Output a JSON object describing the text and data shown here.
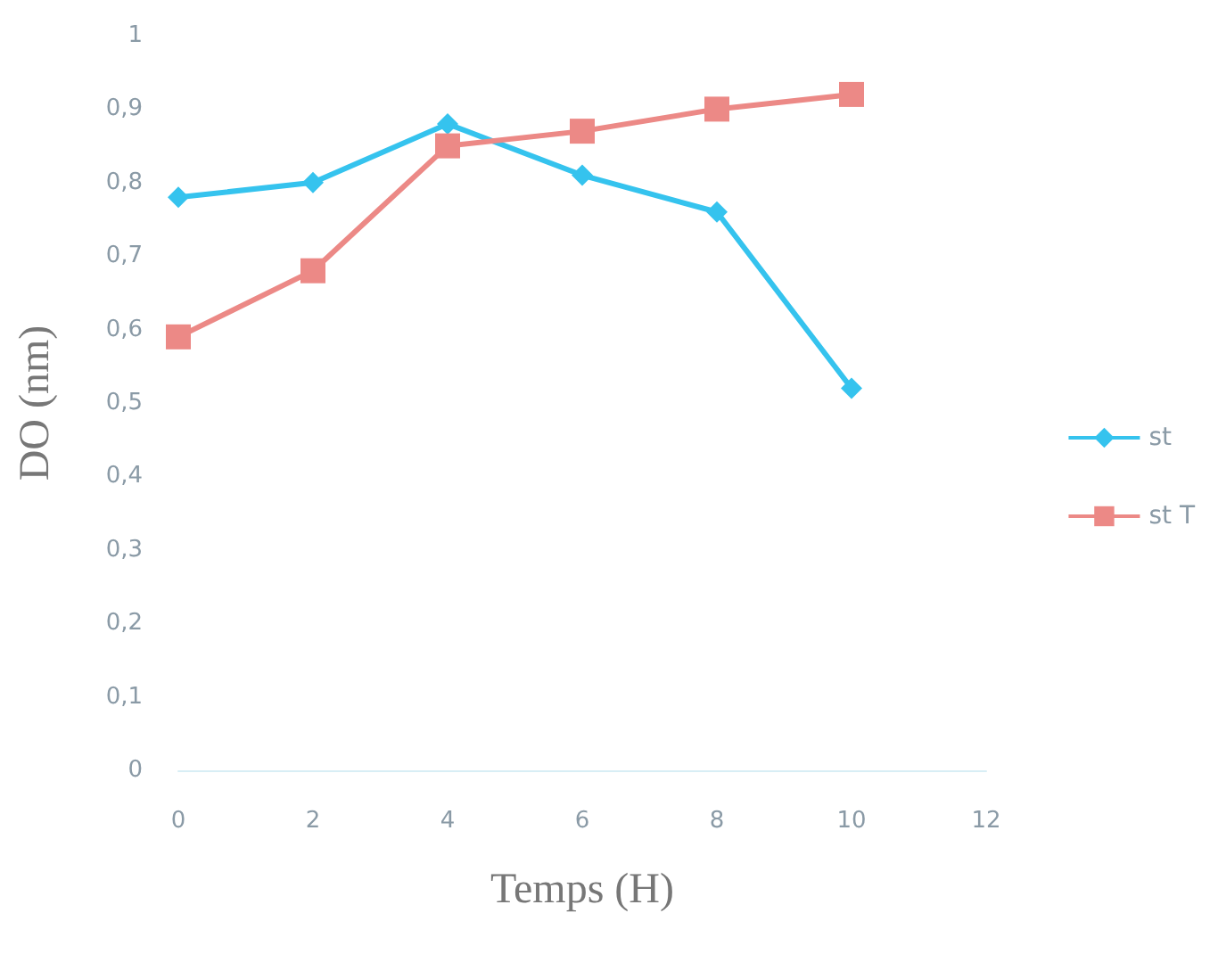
{
  "chart_data": {
    "type": "line",
    "xlabel": "Temps (H)",
    "ylabel": "DO (nm)",
    "x": [
      0,
      2,
      4,
      6,
      8,
      10
    ],
    "series": [
      {
        "name": "st",
        "color": "#35c3ee",
        "marker": "diamond",
        "values": [
          0.78,
          0.8,
          0.88,
          0.81,
          0.76,
          0.52
        ]
      },
      {
        "name": "st T",
        "color": "#ec8986",
        "marker": "square",
        "values": [
          0.59,
          0.68,
          0.85,
          0.87,
          0.9,
          0.92
        ]
      }
    ],
    "xlim": [
      0,
      12
    ],
    "xticks": [
      0,
      2,
      4,
      6,
      8,
      10,
      12
    ],
    "ylim": [
      0,
      1
    ],
    "yticks": [
      0,
      {
        "value": 0.1,
        "label": "0,1"
      },
      {
        "value": 0.2,
        "label": "0,2"
      },
      {
        "value": 0.3,
        "label": "0,3"
      },
      {
        "value": 0.4,
        "label": "0,4"
      },
      {
        "value": 0.5,
        "label": "0,5"
      },
      {
        "value": 0.6,
        "label": "0,6"
      },
      {
        "value": 0.7,
        "label": "0,7"
      },
      {
        "value": 0.8,
        "label": "0,8"
      },
      {
        "value": 0.9,
        "label": "0,9"
      },
      1
    ],
    "grid": false,
    "legend": "right"
  }
}
